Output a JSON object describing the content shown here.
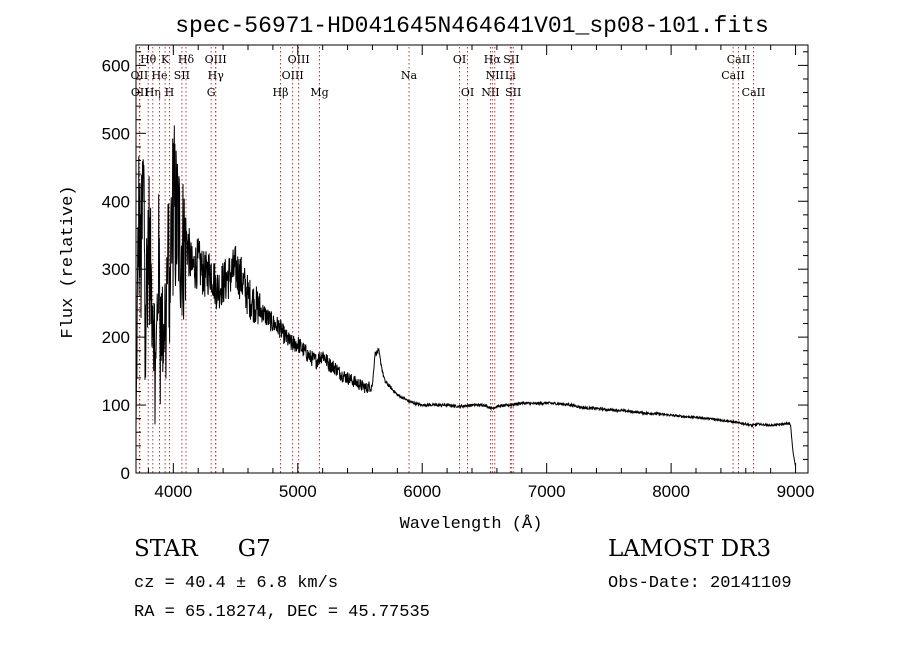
{
  "chart_data": {
    "type": "line",
    "title": "spec-56971-HD041645N464641V01_sp08-101.fits",
    "xlabel": "Wavelength (Å)",
    "ylabel": "Flux (relative)",
    "xlim": [
      3700,
      9100
    ],
    "ylim": [
      0,
      630
    ],
    "x_ticks": [
      4000,
      5000,
      6000,
      7000,
      8000,
      9000
    ],
    "y_ticks": [
      0,
      100,
      200,
      300,
      400,
      500,
      600
    ],
    "grid": false,
    "spectrum": {
      "name": "flux",
      "x": [
        3700,
        3720,
        3740,
        3760,
        3780,
        3800,
        3820,
        3840,
        3860,
        3880,
        3900,
        3920,
        3940,
        3960,
        3980,
        4000,
        4020,
        4040,
        4060,
        4080,
        4100,
        4150,
        4200,
        4250,
        4300,
        4350,
        4400,
        4450,
        4500,
        4550,
        4600,
        4650,
        4700,
        4750,
        4800,
        4850,
        4900,
        4950,
        5000,
        5050,
        5100,
        5150,
        5200,
        5250,
        5300,
        5350,
        5400,
        5450,
        5500,
        5550,
        5600,
        5620,
        5650,
        5680,
        5700,
        5750,
        5800,
        5850,
        5900,
        5950,
        6000,
        6100,
        6200,
        6300,
        6400,
        6500,
        6560,
        6600,
        6700,
        6800,
        6900,
        7000,
        7100,
        7200,
        7300,
        7400,
        7500,
        7600,
        7700,
        7800,
        7900,
        8000,
        8100,
        8200,
        8300,
        8400,
        8500,
        8600,
        8650,
        8700,
        8800,
        8900,
        8950,
        8960,
        8980,
        9000
      ],
      "y": [
        60,
        380,
        300,
        420,
        260,
        360,
        280,
        240,
        150,
        320,
        230,
        200,
        260,
        310,
        330,
        400,
        370,
        360,
        340,
        330,
        350,
        300,
        310,
        290,
        300,
        270,
        280,
        290,
        300,
        285,
        260,
        250,
        240,
        230,
        220,
        215,
        200,
        190,
        190,
        180,
        170,
        165,
        175,
        160,
        155,
        145,
        140,
        135,
        130,
        125,
        130,
        175,
        180,
        150,
        135,
        125,
        115,
        110,
        105,
        102,
        100,
        100,
        100,
        98,
        100,
        100,
        95,
        98,
        100,
        103,
        102,
        103,
        102,
        100,
        96,
        95,
        93,
        92,
        90,
        88,
        87,
        85,
        83,
        82,
        80,
        78,
        75,
        72,
        70,
        72,
        70,
        72,
        73,
        70,
        30,
        10
      ]
    },
    "lines": [
      {
        "label": "OII",
        "x": 3727,
        "row": 2
      },
      {
        "label": "OII",
        "x": 3730,
        "row": 3
      },
      {
        "label": "Hθ",
        "x": 3798,
        "row": 1
      },
      {
        "label": "Hη",
        "x": 3835,
        "row": 3
      },
      {
        "label": "He",
        "x": 3889,
        "row": 2
      },
      {
        "label": "K",
        "x": 3934,
        "row": 1
      },
      {
        "label": "H",
        "x": 3969,
        "row": 3
      },
      {
        "label": "SII",
        "x": 4069,
        "row": 2
      },
      {
        "label": "Hδ",
        "x": 4102,
        "row": 1
      },
      {
        "label": "G",
        "x": 4304,
        "row": 3
      },
      {
        "label": "OIII",
        "x": 4340,
        "row": 1
      },
      {
        "label": "Hγ",
        "x": 4341,
        "row": 2
      },
      {
        "label": "Hβ",
        "x": 4861,
        "row": 3
      },
      {
        "label": "OIII",
        "x": 4959,
        "row": 2
      },
      {
        "label": "OIII",
        "x": 5007,
        "row": 1
      },
      {
        "label": "Mg",
        "x": 5175,
        "row": 3
      },
      {
        "label": "Na",
        "x": 5894,
        "row": 2
      },
      {
        "label": "OI",
        "x": 6300,
        "row": 1
      },
      {
        "label": "OI",
        "x": 6364,
        "row": 3
      },
      {
        "label": "NII",
        "x": 6548,
        "row": 3
      },
      {
        "label": "Hα",
        "x": 6563,
        "row": 1
      },
      {
        "label": "NII",
        "x": 6583,
        "row": 2
      },
      {
        "label": "Li",
        "x": 6708,
        "row": 2
      },
      {
        "label": "SII",
        "x": 6716,
        "row": 1
      },
      {
        "label": "SII",
        "x": 6731,
        "row": 3
      },
      {
        "label": "CaII",
        "x": 8498,
        "row": 2
      },
      {
        "label": "CaII",
        "x": 8542,
        "row": 1
      },
      {
        "label": "CaII",
        "x": 8662,
        "row": 3
      }
    ]
  },
  "footer": {
    "object_type": "STAR",
    "subclass": "G7",
    "survey": "LAMOST DR3",
    "redshift": "cz = 40.4 ± 6.8 km/s",
    "obs_date": "Obs-Date: 20141109",
    "coords": "RA =  65.18274, DEC =  45.77535"
  },
  "colors": {
    "axis": "#000000",
    "spectrum": "#000000",
    "line_markers": "#b22222"
  }
}
